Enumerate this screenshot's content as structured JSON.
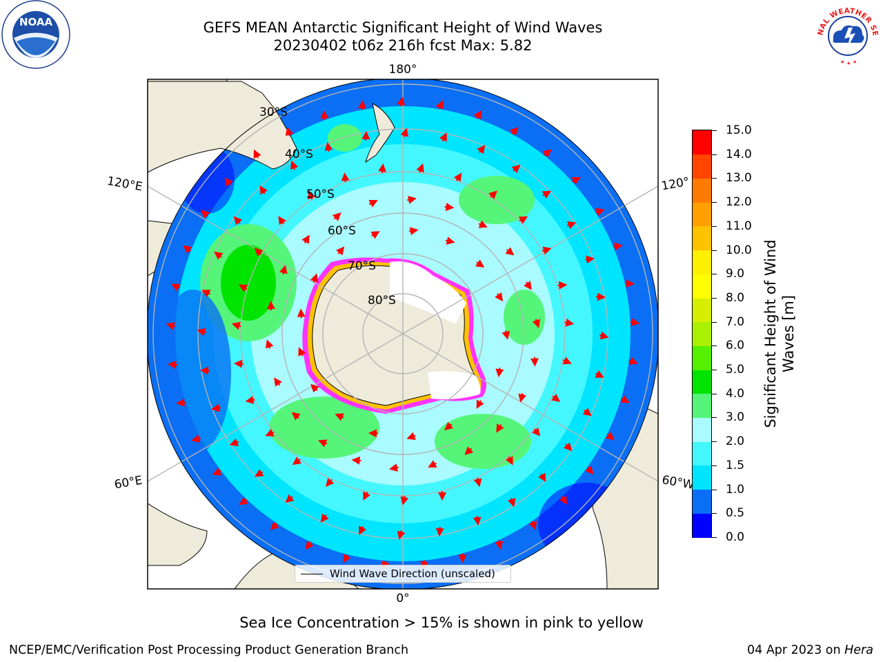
{
  "header": {
    "title_line1": "GEFS MEAN Antarctic Significant Height of Wind Waves",
    "title_line2": "20230402 t06z 216h fcst   Max: 5.82"
  },
  "logos": {
    "noaa_text": "NOAA",
    "nws_text": "NATIONAL WEATHER SERVICE"
  },
  "map": {
    "projection": "south-polar-stereographic",
    "center_label": "",
    "longitude_labels": [
      {
        "text": "180°",
        "lon": 180
      },
      {
        "text": "120°E",
        "lon": 120
      },
      {
        "text": "120°",
        "lon": -120
      },
      {
        "text": "60°E",
        "lon": 60
      },
      {
        "text": "60°W",
        "lon": -60
      },
      {
        "text": "0°",
        "lon": 0
      }
    ],
    "latitude_labels": [
      "30°S",
      "40°S",
      "50°S",
      "60°S",
      "70°S",
      "80°S"
    ],
    "latitude_circles": [
      -30,
      -40,
      -50,
      -60,
      -70,
      -80
    ],
    "longitude_lines": [
      0,
      60,
      120,
      180,
      -120,
      -60
    ],
    "colors": {
      "land": "#efebdb",
      "ocean_low": "#0d6ef5",
      "ice_edge": "#ff33ff",
      "arrow": "#ff0000",
      "grid": "#b4b4b4"
    }
  },
  "legend": {
    "label": "Wind Wave Direction (unscaled)"
  },
  "colorbar": {
    "title": "Significant Height of Wind Waves [m]",
    "title_line1": "Significant Height of Wind",
    "title_line2": "Waves [m]",
    "ticks": [
      "0.0",
      "0.5",
      "1.0",
      "1.5",
      "2.0",
      "3.0",
      "4.0",
      "5.0",
      "6.0",
      "7.0",
      "8.0",
      "9.0",
      "10.0",
      "11.0",
      "12.0",
      "13.0",
      "14.0",
      "15.0"
    ],
    "colors": [
      "#0000ff",
      "#0a6ff5",
      "#00e5ff",
      "#44f7ff",
      "#a9fbff",
      "#55f57a",
      "#00e400",
      "#55ef00",
      "#aaf000",
      "#d6ef00",
      "#ffff00",
      "#ffef00",
      "#ffc200",
      "#ff9f00",
      "#ff7a00",
      "#ff4500",
      "#ff0000"
    ]
  },
  "notes": {
    "ice": "Sea Ice Concentration > 15% is shown in pink to yellow"
  },
  "footer": {
    "left": "NCEP/EMC/Verification Post Processing Product Generation Branch",
    "right_date": "04 Apr 2023 on ",
    "right_system": "Hera"
  }
}
